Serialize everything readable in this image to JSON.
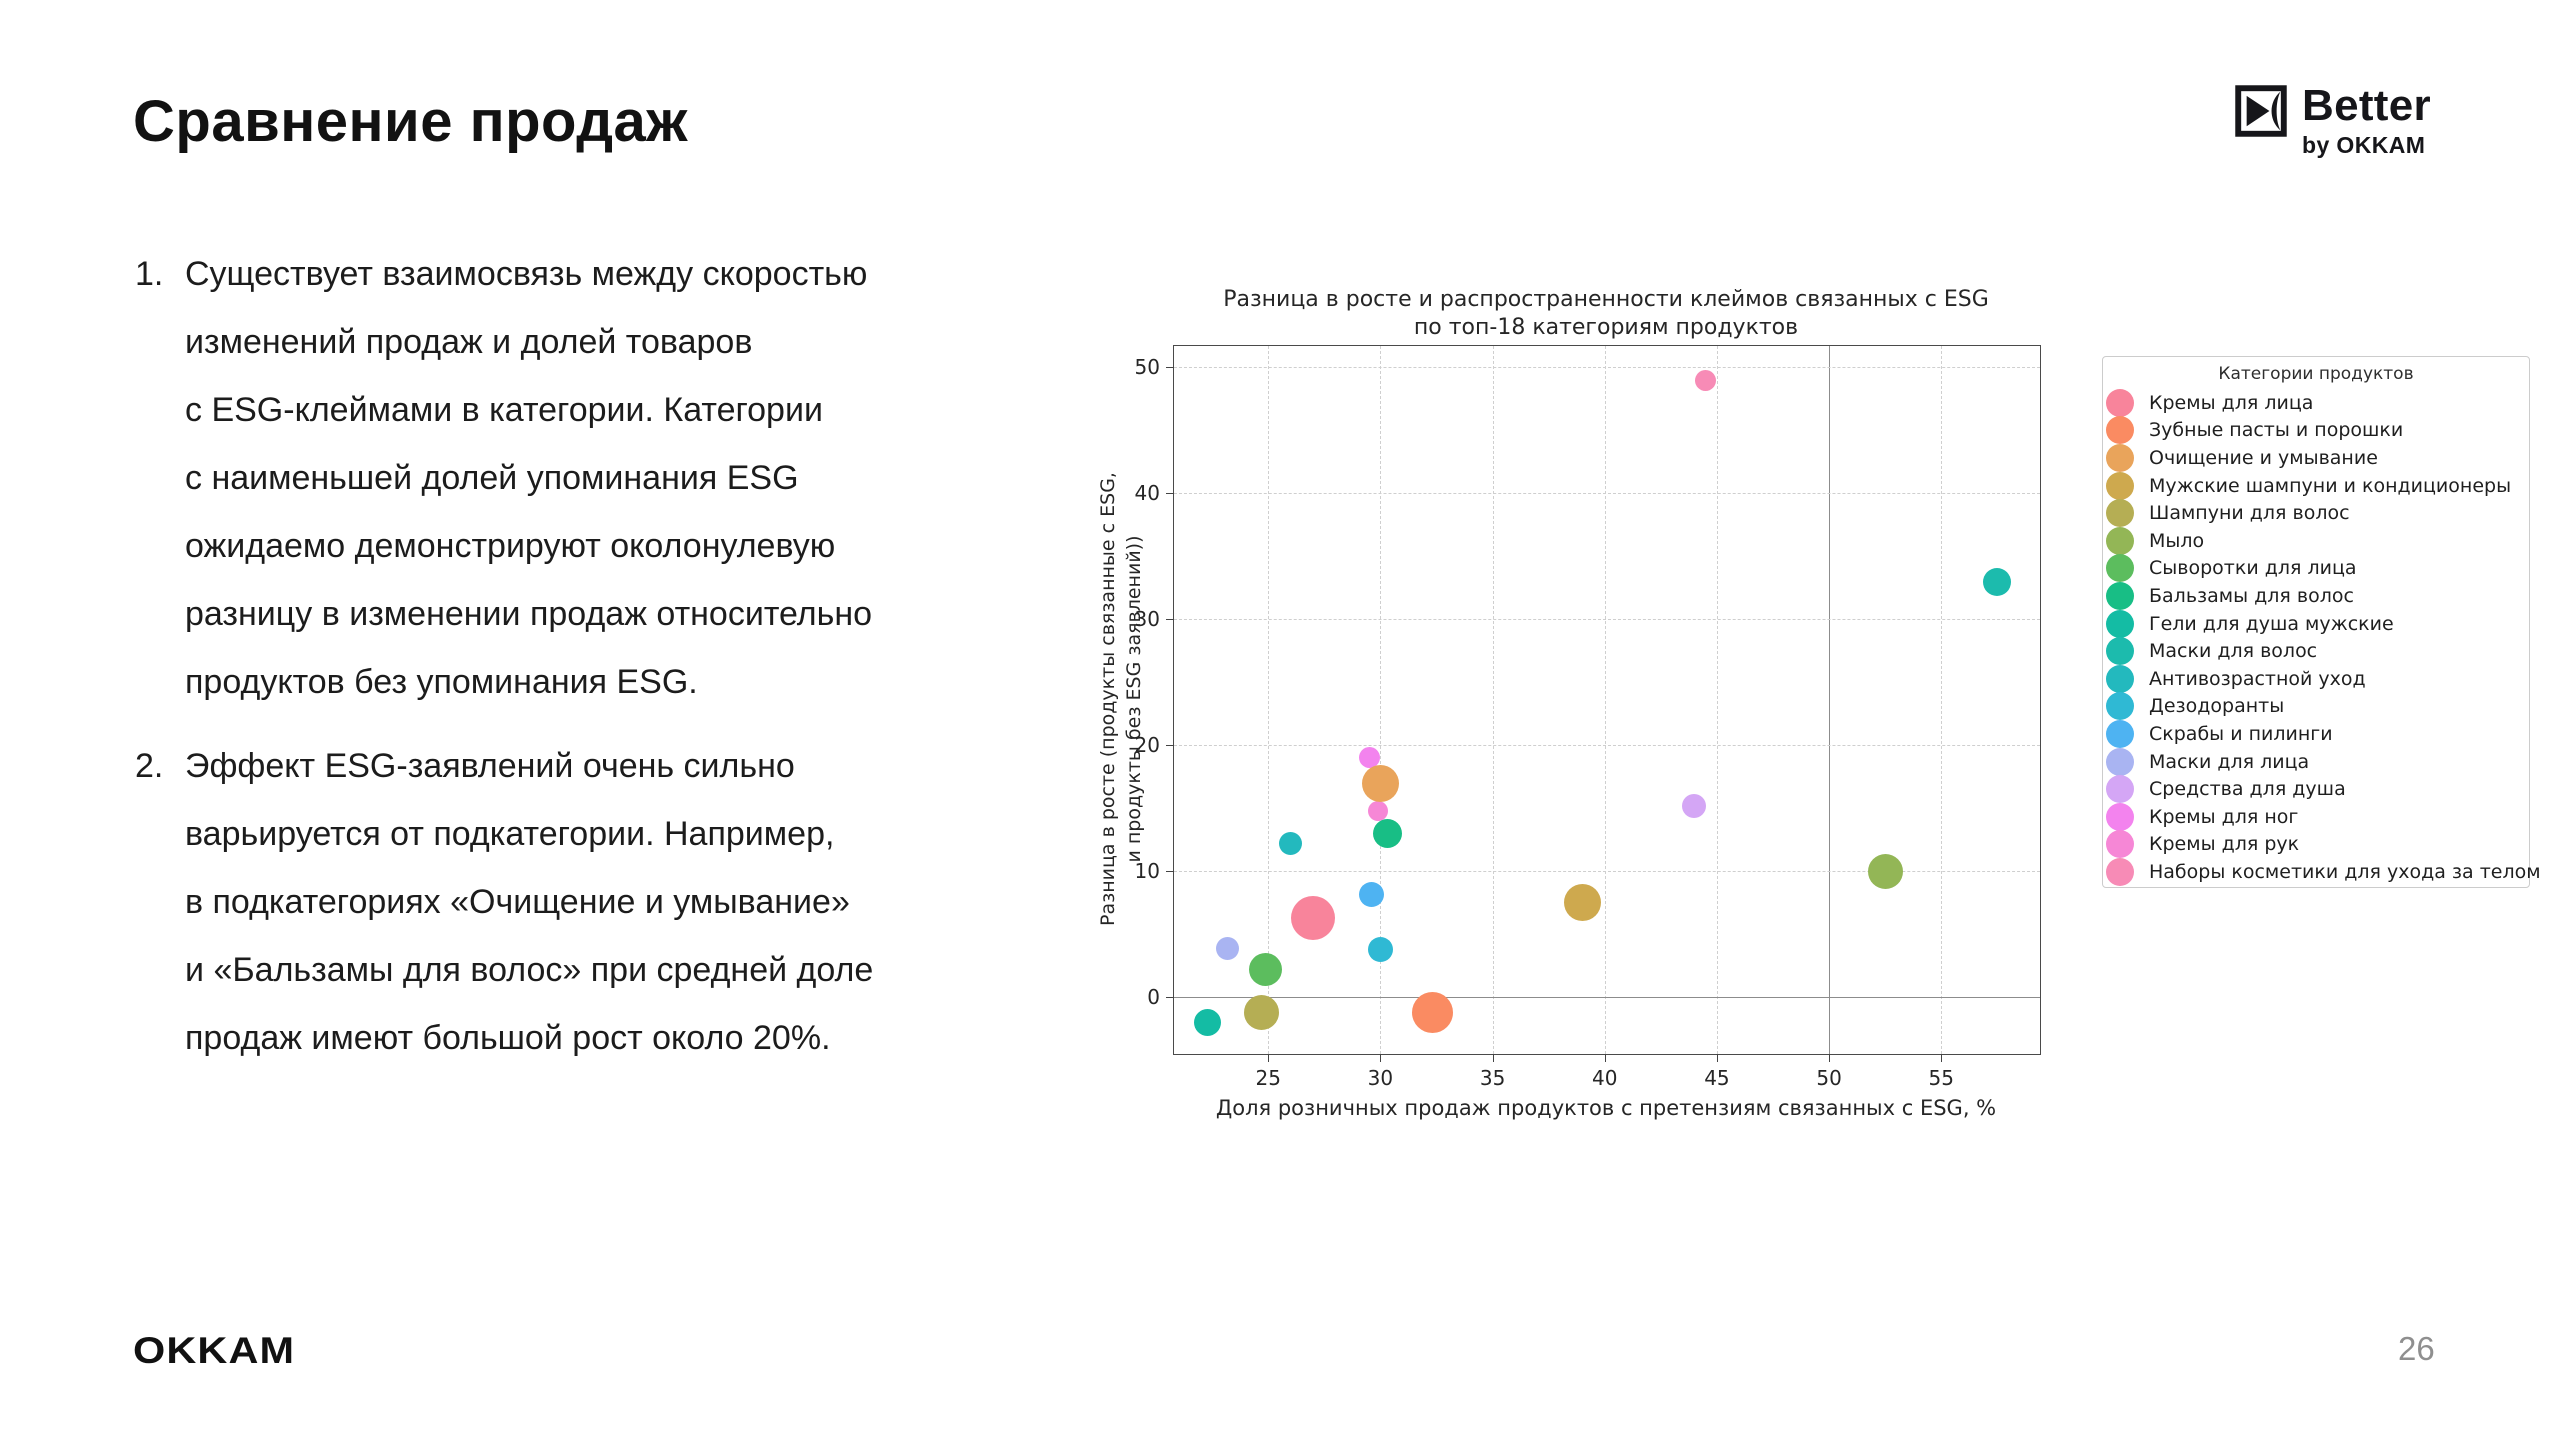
{
  "slide": {
    "title": "Сравнение продаж",
    "page_number": "26",
    "footer_logo": "OKKAM",
    "brand": {
      "name": "Better",
      "sub": "by OKKAM"
    },
    "bullets": [
      {
        "number": "1.",
        "text": "Существует взаимосвязь между скоростью\nизменений продаж и долей товаров\nс ESG-клеймами в категории. Категории\nс наименьшей долей упоминания ESG\nожидаемо демонстрируют околонулевую\nразницу в изменении продаж относительно\nпродуктов без упоминания ESG."
      },
      {
        "number": "2.",
        "text": "Эффект ESG-заявлений очень сильно\nварьируется от подкатегории. Например,\nв подкатегориях «Очищение и умывание»\nи «Бальзамы для волос» при средней доле\nпродаж имеют большой рост около 20%."
      }
    ]
  },
  "chart_data": {
    "type": "scatter",
    "title": "Разница в росте и распространенности клеймов связанных с ESG\nпо топ-18 категориям продуктов",
    "xlabel": "Доля розничных продаж продуктов с претензиям связанных с ESG, %",
    "ylabel": "Разница в росте (продукты связанные с ESG,\nи продукты без ESG заявлений))",
    "xlim": [
      20.8,
      59.4
    ],
    "ylim": [
      -4.5,
      51.7
    ],
    "x_ticks": [
      25,
      30,
      35,
      40,
      45,
      50,
      55
    ],
    "y_ticks": [
      0,
      10,
      20,
      30,
      40,
      50
    ],
    "reference_lines": {
      "x": 50,
      "y": 0
    },
    "grid": "dashed",
    "legend_position": "right",
    "legend_title": "Категории продуктов",
    "points": [
      {
        "category": "Кремы для лица",
        "x": 27.0,
        "y": 6.3,
        "size": 44,
        "color": "#F8849B"
      },
      {
        "category": "Зубные пасты и порошки",
        "x": 32.3,
        "y": -1.2,
        "size": 41,
        "color": "#FA8B62"
      },
      {
        "category": "Очищение и умывание",
        "x": 30.0,
        "y": 17.0,
        "size": 37,
        "color": "#E9A45B"
      },
      {
        "category": "Мужские шампуни и кондиционеры",
        "x": 39.0,
        "y": 7.5,
        "size": 37,
        "color": "#CEA94E"
      },
      {
        "category": "Шампуни для волос",
        "x": 24.7,
        "y": -1.2,
        "size": 35,
        "color": "#B5AE54"
      },
      {
        "category": "Мыло",
        "x": 52.5,
        "y": 10.0,
        "size": 35,
        "color": "#93B656"
      },
      {
        "category": "Сыворотки для лица",
        "x": 24.9,
        "y": 2.2,
        "size": 33,
        "color": "#5CBD5E"
      },
      {
        "category": "Бальзамы для волос",
        "x": 30.3,
        "y": 13.0,
        "size": 29,
        "color": "#18BE85"
      },
      {
        "category": "Гели для душа мужские",
        "x": 22.3,
        "y": -2.0,
        "size": 27,
        "color": "#14BCA4"
      },
      {
        "category": "Маски для волос",
        "x": 57.5,
        "y": 33.0,
        "size": 28,
        "color": "#1CBBAD"
      },
      {
        "category": "Антивозрастной уход",
        "x": 26.0,
        "y": 12.2,
        "size": 23,
        "color": "#23B9BE"
      },
      {
        "category": "Дезодоранты",
        "x": 30.0,
        "y": 3.8,
        "size": 25,
        "color": "#2FB9D4"
      },
      {
        "category": "Скрабы и пилинги",
        "x": 29.6,
        "y": 8.2,
        "size": 25,
        "color": "#4EB3F2"
      },
      {
        "category": "Маски для лица",
        "x": 23.2,
        "y": 3.9,
        "size": 23,
        "color": "#A9B4F2"
      },
      {
        "category": "Средства для душа",
        "x": 44.0,
        "y": 15.2,
        "size": 24,
        "color": "#D4A6F5"
      },
      {
        "category": "Кремы для ног",
        "x": 29.5,
        "y": 19.0,
        "size": 21,
        "color": "#F383EE"
      },
      {
        "category": "Кремы для рук",
        "x": 29.9,
        "y": 14.8,
        "size": 20,
        "color": "#F687D6"
      },
      {
        "category": "Наборы косметики для ухода за телом",
        "x": 44.5,
        "y": 49.0,
        "size": 21,
        "color": "#F78BB6"
      }
    ]
  }
}
